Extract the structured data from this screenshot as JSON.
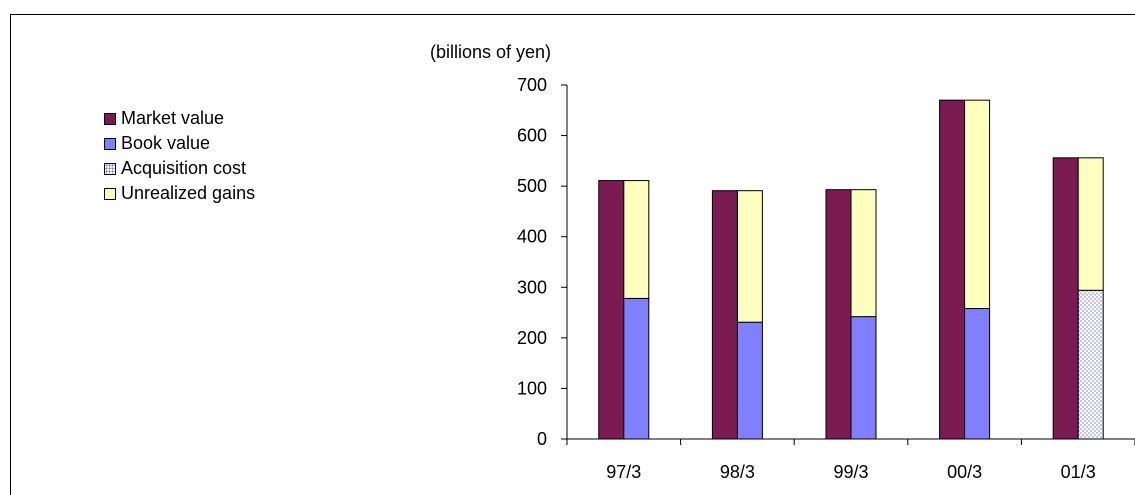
{
  "chart_data": {
    "type": "bar",
    "unit_label": "(billions of yen)",
    "categories": [
      "97/3",
      "98/3",
      "99/3",
      "00/3",
      "01/3"
    ],
    "ylim": [
      0,
      700
    ],
    "yticks": [
      0,
      100,
      200,
      300,
      400,
      500,
      600,
      700
    ],
    "legend_position": "left",
    "grid": false,
    "series": [
      {
        "name": "Market value",
        "color": "#7a1c52",
        "stack": "market",
        "values": [
          511,
          491,
          493,
          670,
          556
        ]
      },
      {
        "name": "Book value",
        "color": "#8080ff",
        "stack": "breakdown",
        "values": [
          278,
          231,
          242,
          258,
          null
        ]
      },
      {
        "name": "Acquisition cost",
        "color": "#d8d8f4",
        "pattern": "dotted",
        "stack": "breakdown",
        "values": [
          null,
          null,
          null,
          null,
          294
        ]
      },
      {
        "name": "Unrealized gains",
        "color": "#ffffc0",
        "stack": "breakdown",
        "values": [
          233,
          260,
          251,
          412,
          262
        ]
      }
    ]
  }
}
